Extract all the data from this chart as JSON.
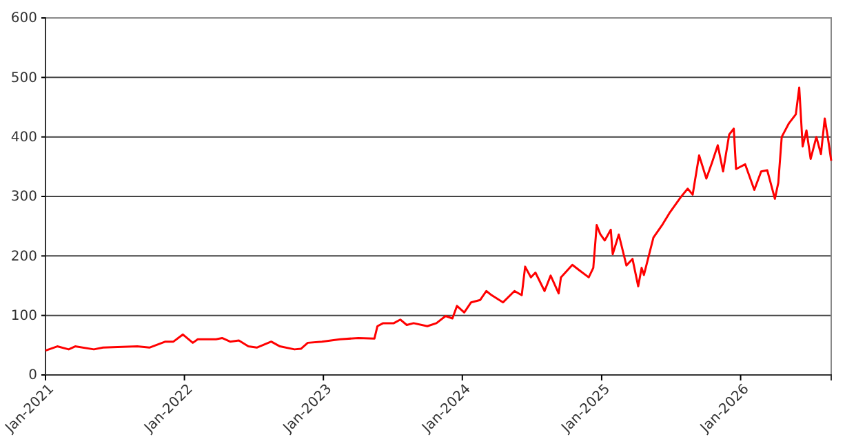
{
  "chart_data": {
    "type": "line",
    "grid": "y",
    "marker": "none",
    "line_style": "solid",
    "xlim": [
      "2021-01-01",
      "2026-08-27"
    ],
    "xticks": [
      {
        "value": "2021-01-01",
        "label": "Jan-2021"
      },
      {
        "value": "2022-01-01",
        "label": "Jan-2022"
      },
      {
        "value": "2023-01-01",
        "label": "Jan-2023"
      },
      {
        "value": "2024-01-01",
        "label": "Jan-2024"
      },
      {
        "value": "2025-01-01",
        "label": "Jan-2025"
      },
      {
        "value": "2026-01-01",
        "label": "Jan-2026"
      }
    ],
    "ylim": [
      0,
      600
    ],
    "yticks": [
      0,
      100,
      200,
      300,
      400,
      500,
      600
    ],
    "series": [
      {
        "color": "#ff0000",
        "x": [
          "2021-01-01",
          "2021-02-01",
          "2021-03-03",
          "2021-03-20",
          "2021-05-08",
          "2021-06-01",
          "2021-08-30",
          "2021-10-01",
          "2021-11-12",
          "2021-12-03",
          "2021-12-28",
          "2022-01-23",
          "2022-02-05",
          "2022-03-25",
          "2022-04-10",
          "2022-05-01",
          "2022-05-24",
          "2022-06-18",
          "2022-07-10",
          "2022-08-17",
          "2022-09-09",
          "2022-10-17",
          "2022-11-03",
          "2022-11-21",
          "2022-12-28",
          "2023-02-14",
          "2023-04-03",
          "2023-05-15",
          "2023-05-23",
          "2023-06-07",
          "2023-07-05",
          "2023-07-22",
          "2023-08-08",
          "2023-08-26",
          "2023-10-01",
          "2023-10-25",
          "2023-11-18",
          "2023-12-06",
          "2023-12-18",
          "2024-01-06",
          "2024-01-24",
          "2024-02-17",
          "2024-03-04",
          "2024-03-18",
          "2024-04-17",
          "2024-05-17",
          "2024-06-05",
          "2024-06-14",
          "2024-06-29",
          "2024-07-11",
          "2024-08-04",
          "2024-08-20",
          "2024-09-10",
          "2024-09-16",
          "2024-10-16",
          "2024-11-03",
          "2024-11-28",
          "2024-12-10",
          "2024-12-19",
          "2024-12-28",
          "2025-01-09",
          "2025-01-25",
          "2025-01-30",
          "2025-02-15",
          "2025-03-07",
          "2025-03-23",
          "2025-04-07",
          "2025-04-16",
          "2025-04-22",
          "2025-05-17",
          "2025-06-10",
          "2025-06-28",
          "2025-07-28",
          "2025-08-15",
          "2025-08-28",
          "2025-09-14",
          "2025-10-03",
          "2025-10-18",
          "2025-11-02",
          "2025-11-16",
          "2025-12-02",
          "2025-12-14",
          "2025-12-20",
          "2026-01-13",
          "2026-02-06",
          "2026-02-24",
          "2026-03-12",
          "2026-04-01",
          "2026-04-10",
          "2026-04-19",
          "2026-05-08",
          "2026-05-26",
          "2026-06-04",
          "2026-06-13",
          "2026-06-23",
          "2026-07-04",
          "2026-07-19",
          "2026-07-31",
          "2026-08-10",
          "2026-08-18",
          "2026-08-27"
        ],
        "values": [
          41,
          48,
          43,
          48,
          43,
          46,
          48,
          46,
          56,
          56,
          68,
          54,
          60,
          60,
          62,
          56,
          58,
          48,
          46,
          56,
          48,
          43,
          44,
          54,
          56,
          60,
          62,
          61,
          82,
          87,
          87,
          93,
          84,
          87,
          82,
          87,
          99,
          95,
          116,
          105,
          122,
          126,
          141,
          134,
          122,
          141,
          134,
          182,
          164,
          172,
          141,
          167,
          137,
          164,
          185,
          176,
          164,
          180,
          252,
          237,
          226,
          244,
          203,
          236,
          184,
          195,
          149,
          180,
          168,
          231,
          253,
          272,
          299,
          313,
          303,
          369,
          330,
          357,
          386,
          342,
          404,
          414,
          346,
          354,
          311,
          342,
          344,
          296,
          323,
          400,
          423,
          438,
          483,
          384,
          411,
          363,
          400,
          371,
          431,
          400,
          360
        ]
      }
    ]
  }
}
